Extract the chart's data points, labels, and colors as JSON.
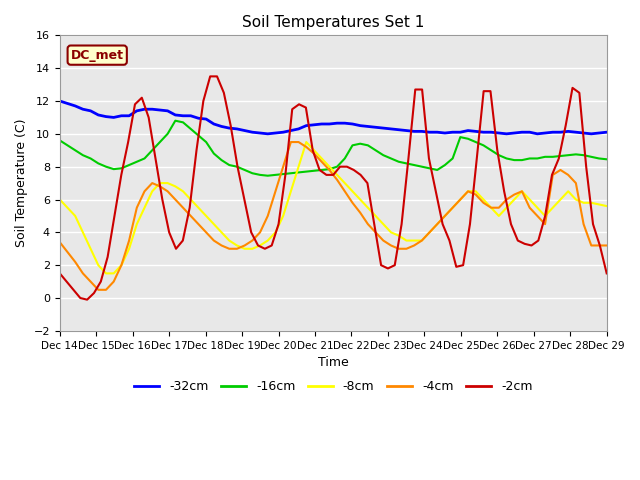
{
  "title": "Soil Temperatures Set 1",
  "xlabel": "Time",
  "ylabel": "Soil Temperature (C)",
  "annotation": "DC_met",
  "ylim": [
    -2,
    16
  ],
  "x_labels": [
    "Dec 14",
    "Dec 15",
    "Dec 16",
    "Dec 17",
    "Dec 18",
    "Dec 19",
    "Dec 20",
    "Dec 21",
    "Dec 22",
    "Dec 23",
    "Dec 24",
    "Dec 25",
    "Dec 26",
    "Dec 27",
    "Dec 28",
    "Dec 29"
  ],
  "series": {
    "-32cm": {
      "color": "#0000ff",
      "linewidth": 2.0,
      "values": [
        12.0,
        11.85,
        11.7,
        11.5,
        11.4,
        11.15,
        11.05,
        11.0,
        11.1,
        11.1,
        11.4,
        11.5,
        11.5,
        11.45,
        11.4,
        11.15,
        11.1,
        11.1,
        10.95,
        10.9,
        10.6,
        10.45,
        10.35,
        10.3,
        10.2,
        10.1,
        10.05,
        10.0,
        10.05,
        10.1,
        10.2,
        10.3,
        10.5,
        10.55,
        10.6,
        10.6,
        10.65,
        10.65,
        10.6,
        10.5,
        10.45,
        10.4,
        10.35,
        10.3,
        10.25,
        10.2,
        10.15,
        10.15,
        10.1,
        10.1,
        10.05,
        10.1,
        10.1,
        10.2,
        10.15,
        10.1,
        10.1,
        10.05,
        10.0,
        10.05,
        10.1,
        10.1,
        10.0,
        10.05,
        10.1,
        10.1,
        10.15,
        10.1,
        10.05,
        10.0,
        10.05,
        10.1
      ]
    },
    "-16cm": {
      "color": "#00cc00",
      "linewidth": 1.5,
      "values": [
        9.6,
        9.3,
        9.0,
        8.7,
        8.5,
        8.2,
        8.0,
        7.85,
        7.9,
        8.1,
        8.3,
        8.5,
        9.0,
        9.5,
        10.0,
        10.8,
        10.7,
        10.3,
        9.9,
        9.5,
        8.8,
        8.4,
        8.1,
        8.0,
        7.8,
        7.6,
        7.5,
        7.45,
        7.5,
        7.55,
        7.6,
        7.65,
        7.7,
        7.75,
        7.8,
        7.85,
        8.0,
        8.5,
        9.3,
        9.4,
        9.3,
        9.0,
        8.7,
        8.5,
        8.3,
        8.2,
        8.1,
        8.0,
        7.9,
        7.8,
        8.1,
        8.5,
        9.8,
        9.7,
        9.5,
        9.3,
        9.0,
        8.7,
        8.5,
        8.4,
        8.4,
        8.5,
        8.5,
        8.6,
        8.6,
        8.65,
        8.7,
        8.75,
        8.7,
        8.6,
        8.5,
        8.45
      ]
    },
    "-8cm": {
      "color": "#ffff00",
      "linewidth": 1.5,
      "values": [
        6.0,
        5.5,
        5.0,
        4.0,
        3.0,
        2.0,
        1.5,
        1.5,
        2.0,
        3.0,
        4.5,
        5.5,
        6.5,
        7.0,
        7.0,
        6.8,
        6.5,
        6.0,
        5.5,
        5.0,
        4.5,
        4.0,
        3.5,
        3.2,
        3.0,
        3.0,
        3.2,
        3.5,
        4.0,
        5.0,
        6.5,
        8.0,
        9.5,
        9.0,
        8.5,
        8.0,
        7.5,
        7.0,
        6.5,
        6.0,
        5.5,
        5.0,
        4.5,
        4.0,
        3.8,
        3.5,
        3.5,
        3.5,
        4.0,
        4.5,
        5.0,
        5.5,
        6.0,
        6.5,
        6.5,
        6.0,
        5.5,
        5.0,
        5.5,
        6.0,
        6.5,
        6.0,
        5.5,
        5.0,
        5.5,
        6.0,
        6.5,
        6.0,
        5.8,
        5.8,
        5.7,
        5.6
      ]
    },
    "-4cm": {
      "color": "#ff8800",
      "linewidth": 1.5,
      "values": [
        3.4,
        2.8,
        2.2,
        1.5,
        1.0,
        0.5,
        0.5,
        1.0,
        2.0,
        3.5,
        5.5,
        6.5,
        7.0,
        6.8,
        6.5,
        6.0,
        5.5,
        5.0,
        4.5,
        4.0,
        3.5,
        3.2,
        3.0,
        3.0,
        3.2,
        3.5,
        4.0,
        5.0,
        6.5,
        8.0,
        9.5,
        9.5,
        9.2,
        8.8,
        8.3,
        7.8,
        7.2,
        6.5,
        5.8,
        5.2,
        4.5,
        4.0,
        3.5,
        3.2,
        3.0,
        3.0,
        3.2,
        3.5,
        4.0,
        4.5,
        5.0,
        5.5,
        6.0,
        6.5,
        6.3,
        5.8,
        5.5,
        5.5,
        6.0,
        6.3,
        6.5,
        5.5,
        5.0,
        4.5,
        7.5,
        7.8,
        7.5,
        7.0,
        4.5,
        3.2,
        3.2,
        3.2
      ]
    },
    "-2cm": {
      "color": "#cc0000",
      "linewidth": 1.5,
      "values": [
        1.5,
        1.0,
        0.5,
        0.0,
        -0.1,
        0.3,
        1.0,
        2.5,
        5.0,
        7.5,
        9.5,
        11.8,
        12.2,
        11.0,
        8.5,
        6.0,
        4.0,
        3.0,
        3.5,
        5.5,
        9.0,
        12.0,
        13.5,
        13.5,
        12.5,
        10.5,
        8.0,
        6.0,
        4.0,
        3.2,
        3.0,
        3.2,
        4.5,
        7.5,
        11.5,
        11.8,
        11.6,
        9.0,
        7.8,
        7.5,
        7.5,
        8.0,
        8.0,
        7.8,
        7.5,
        7.0,
        4.5,
        2.0,
        1.8,
        2.0,
        4.5,
        8.5,
        12.7,
        12.7,
        8.5,
        6.5,
        4.5,
        3.5,
        1.9,
        2.0,
        4.5,
        8.5,
        12.6,
        12.6,
        9.0,
        6.5,
        4.5,
        3.5,
        3.3,
        3.2,
        3.5,
        5.0,
        7.5,
        8.5,
        10.5,
        12.8,
        12.5,
        8.0,
        4.5,
        3.2,
        1.5
      ]
    }
  },
  "legend_entries": [
    "-32cm",
    "-16cm",
    "-8cm",
    "-4cm",
    "-2cm"
  ],
  "legend_colors": [
    "#0000ff",
    "#00cc00",
    "#ffff00",
    "#ff8800",
    "#cc0000"
  ]
}
